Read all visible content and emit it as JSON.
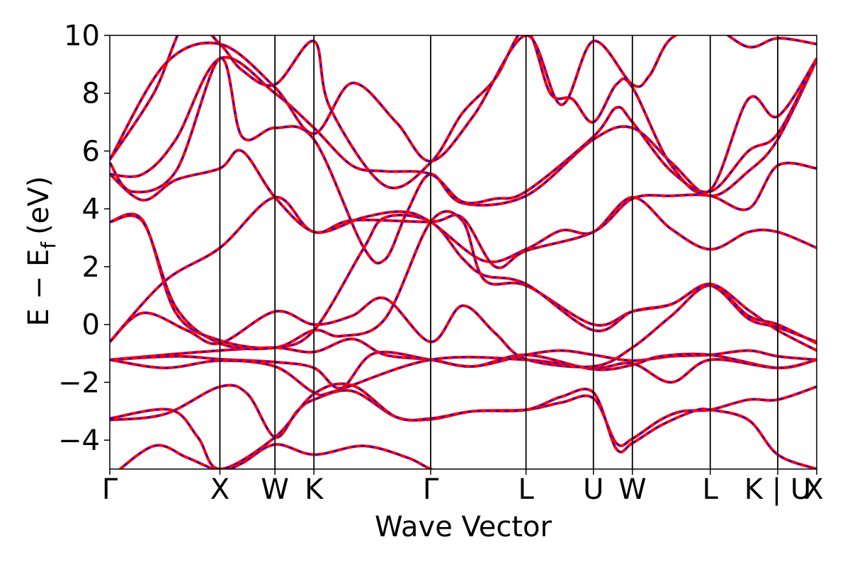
{
  "chart_data": {
    "type": "line",
    "xlabel": "Wave Vector",
    "ylabel": {
      "base": "E − E",
      "subscript": "f",
      "unit": "(eV)"
    },
    "ylim": [
      -5,
      10
    ],
    "yticks": [
      -4,
      -2,
      0,
      2,
      4,
      6,
      8,
      10
    ],
    "ytick_labels": [
      "−4",
      "−2",
      "0",
      "2",
      "4",
      "6",
      "8",
      "10"
    ],
    "grid": false,
    "k_path": [
      {
        "label": "Γ",
        "x": 0.0
      },
      {
        "label": "X",
        "x": 1.0
      },
      {
        "label": "W",
        "x": 1.5
      },
      {
        "label": "K",
        "x": 1.854
      },
      {
        "label": "Γ",
        "x": 2.914
      },
      {
        "label": "L",
        "x": 3.78
      },
      {
        "label": "U",
        "x": 4.392
      },
      {
        "label": "W",
        "x": 4.746
      },
      {
        "label": "L",
        "x": 5.453
      },
      {
        "label": "K | U",
        "x": 6.066
      },
      {
        "label": "X",
        "x": 6.42
      }
    ],
    "series_styles": [
      {
        "color": "#ff0000",
        "style": "solid"
      },
      {
        "color": "#0000ff",
        "style": "dashed"
      }
    ],
    "bands": [
      [
        [
          0,
          -5.3
        ],
        [
          0.4,
          -4.2
        ],
        [
          0.7,
          -4.6
        ],
        [
          1.0,
          -5.05
        ],
        [
          1.2,
          -4.8
        ],
        [
          1.5,
          -4.15
        ],
        [
          1.854,
          -4.5
        ],
        [
          2.3,
          -4.2
        ],
        [
          2.7,
          -4.6
        ],
        [
          2.914,
          -5.0
        ],
        [
          3.2,
          -5.4
        ]
      ],
      [
        [
          0,
          -3.3
        ],
        [
          0.5,
          -3.1
        ],
        [
          1.0,
          -2.15
        ],
        [
          1.25,
          -2.4
        ],
        [
          1.5,
          -3.9
        ],
        [
          1.7,
          -3.0
        ],
        [
          1.854,
          -2.6
        ],
        [
          2.2,
          -2.3
        ],
        [
          2.6,
          -3.2
        ],
        [
          2.914,
          -3.28
        ],
        [
          3.3,
          -3.0
        ],
        [
          3.78,
          -2.95
        ],
        [
          4.1,
          -2.7
        ],
        [
          4.392,
          -2.55
        ],
        [
          4.6,
          -4.1
        ],
        [
          4.746,
          -3.95
        ],
        [
          5.0,
          -3.3
        ],
        [
          5.2,
          -3.0
        ],
        [
          5.453,
          -2.95
        ],
        [
          5.8,
          -2.6
        ],
        [
          6.066,
          -2.6
        ],
        [
          6.42,
          -2.15
        ]
      ],
      [
        [
          0,
          -3.25
        ],
        [
          0.55,
          -2.95
        ],
        [
          0.8,
          -3.9
        ],
        [
          1.0,
          -5.0
        ],
        [
          1.5,
          -3.9
        ],
        [
          1.854,
          -2.4
        ],
        [
          2.2,
          -2.1
        ],
        [
          2.6,
          -3.2
        ],
        [
          2.914,
          -3.25
        ],
        [
          3.3,
          -3.0
        ],
        [
          3.78,
          -2.95
        ],
        [
          4.1,
          -2.5
        ],
        [
          4.392,
          -2.35
        ],
        [
          4.6,
          -4.3
        ],
        [
          4.746,
          -4.1
        ],
        [
          5.0,
          -3.5
        ],
        [
          5.3,
          -3.0
        ],
        [
          5.453,
          -2.95
        ],
        [
          5.8,
          -3.3
        ],
        [
          6.066,
          -4.5
        ],
        [
          6.42,
          -5.0
        ]
      ],
      [
        [
          0,
          -1.22
        ],
        [
          0.5,
          -1.05
        ],
        [
          1.0,
          -0.9
        ],
        [
          1.5,
          -0.8
        ],
        [
          1.854,
          -0.95
        ],
        [
          2.2,
          -0.5
        ],
        [
          2.5,
          -1.05
        ],
        [
          2.914,
          -1.22
        ],
        [
          3.3,
          -1.45
        ],
        [
          3.78,
          -1.05
        ],
        [
          4.1,
          -0.9
        ],
        [
          4.392,
          -1.05
        ],
        [
          4.746,
          -1.25
        ],
        [
          5.1,
          -1.1
        ],
        [
          5.453,
          -1.05
        ],
        [
          5.8,
          -0.9
        ],
        [
          6.066,
          -1.1
        ],
        [
          6.42,
          -1.22
        ]
      ],
      [
        [
          0,
          -1.22
        ],
        [
          0.6,
          -1.1
        ],
        [
          1.0,
          -1.2
        ],
        [
          1.5,
          -1.3
        ],
        [
          1.854,
          -1.5
        ],
        [
          2.1,
          -2.2
        ],
        [
          2.4,
          -1.0
        ],
        [
          2.914,
          -1.22
        ],
        [
          3.3,
          -1.45
        ],
        [
          3.78,
          -1.05
        ],
        [
          4.392,
          -1.55
        ],
        [
          4.746,
          -1.4
        ],
        [
          5.0,
          -1.1
        ],
        [
          5.453,
          -1.05
        ],
        [
          6.066,
          -1.5
        ],
        [
          6.42,
          -1.22
        ]
      ],
      [
        [
          0,
          -1.22
        ],
        [
          0.5,
          -1.5
        ],
        [
          1.0,
          -1.25
        ],
        [
          1.5,
          -1.45
        ],
        [
          1.854,
          -2.35
        ],
        [
          2.05,
          -2.3
        ],
        [
          2.914,
          -1.22
        ],
        [
          3.78,
          -1.22
        ],
        [
          4.392,
          -1.5
        ],
        [
          4.746,
          -1.35
        ],
        [
          5.1,
          -2.0
        ],
        [
          5.453,
          -1.22
        ],
        [
          6.066,
          -1.5
        ],
        [
          6.42,
          -1.22
        ]
      ],
      [
        [
          0,
          -0.6
        ],
        [
          0.3,
          0.4
        ],
        [
          0.7,
          -0.2
        ],
        [
          1.0,
          -0.65
        ],
        [
          1.5,
          0.45
        ],
        [
          1.854,
          0.0
        ],
        [
          2.2,
          0.3
        ],
        [
          2.5,
          0.9
        ],
        [
          2.914,
          -0.6
        ],
        [
          3.2,
          0.65
        ],
        [
          3.5,
          -0.3
        ],
        [
          3.78,
          -1.2
        ],
        [
          4.392,
          -1.45
        ],
        [
          4.746,
          -0.8
        ],
        [
          5.1,
          0.3
        ],
        [
          5.453,
          1.35
        ],
        [
          5.8,
          0.3
        ],
        [
          6.066,
          0.0
        ],
        [
          6.42,
          -0.65
        ]
      ],
      [
        [
          0,
          3.55
        ],
        [
          0.3,
          3.6
        ],
        [
          0.6,
          0.4
        ],
        [
          1.0,
          -0.55
        ],
        [
          1.5,
          -0.8
        ],
        [
          1.854,
          -0.2
        ],
        [
          2.1,
          -0.4
        ],
        [
          2.5,
          0.2
        ],
        [
          2.914,
          3.55
        ],
        [
          3.2,
          3.6
        ],
        [
          3.4,
          1.55
        ],
        [
          3.78,
          1.35
        ],
        [
          4.392,
          0.0
        ],
        [
          4.746,
          0.45
        ],
        [
          5.1,
          0.7
        ],
        [
          5.453,
          1.4
        ],
        [
          5.8,
          0.5
        ],
        [
          6.066,
          -0.2
        ],
        [
          6.42,
          -0.9
        ]
      ],
      [
        [
          0,
          3.55
        ],
        [
          0.3,
          3.55
        ],
        [
          0.6,
          0.6
        ],
        [
          1.0,
          -0.65
        ],
        [
          1.5,
          -0.8
        ],
        [
          1.854,
          -0.2
        ],
        [
          2.3,
          2.6
        ],
        [
          2.5,
          3.7
        ],
        [
          2.914,
          3.55
        ],
        [
          3.2,
          2.3
        ],
        [
          3.4,
          1.7
        ],
        [
          3.78,
          1.4
        ],
        [
          4.392,
          -0.2
        ],
        [
          4.746,
          0.45
        ],
        [
          5.1,
          0.7
        ],
        [
          5.453,
          1.35
        ],
        [
          5.8,
          0.2
        ],
        [
          6.066,
          -0.1
        ],
        [
          6.42,
          -0.6
        ]
      ],
      [
        [
          0,
          -0.6
        ],
        [
          0.5,
          1.5
        ],
        [
          1.0,
          2.65
        ],
        [
          1.5,
          4.4
        ],
        [
          1.854,
          3.2
        ],
        [
          2.3,
          3.7
        ],
        [
          2.65,
          3.9
        ],
        [
          2.914,
          3.55
        ],
        [
          3.4,
          2.2
        ],
        [
          3.78,
          2.6
        ],
        [
          4.1,
          3.25
        ],
        [
          4.392,
          3.2
        ],
        [
          4.746,
          4.4
        ],
        [
          5.1,
          3.3
        ],
        [
          5.453,
          2.6
        ],
        [
          5.8,
          3.2
        ],
        [
          6.066,
          3.2
        ],
        [
          6.42,
          2.65
        ]
      ],
      [
        [
          0,
          5.2
        ],
        [
          0.3,
          4.3
        ],
        [
          0.6,
          5.0
        ],
        [
          1.0,
          5.4
        ],
        [
          1.2,
          6.0
        ],
        [
          1.5,
          4.4
        ],
        [
          1.854,
          3.2
        ],
        [
          2.2,
          3.6
        ],
        [
          2.914,
          3.55
        ],
        [
          3.2,
          3.7
        ],
        [
          3.5,
          2.0
        ],
        [
          3.78,
          2.55
        ],
        [
          4.392,
          3.2
        ],
        [
          4.746,
          4.35
        ],
        [
          5.1,
          4.45
        ],
        [
          5.453,
          4.45
        ],
        [
          5.8,
          4.0
        ],
        [
          6.066,
          5.5
        ],
        [
          6.42,
          5.4
        ]
      ],
      [
        [
          0,
          5.6
        ],
        [
          0.2,
          4.6
        ],
        [
          0.6,
          5.3
        ],
        [
          1.0,
          9.2
        ],
        [
          1.2,
          6.5
        ],
        [
          1.5,
          6.8
        ],
        [
          1.854,
          6.4
        ],
        [
          2.3,
          2.7
        ],
        [
          2.5,
          2.25
        ],
        [
          2.7,
          3.9
        ],
        [
          2.914,
          5.2
        ],
        [
          3.2,
          4.2
        ],
        [
          3.78,
          4.45
        ],
        [
          4.392,
          6.4
        ],
        [
          4.746,
          6.8
        ],
        [
          5.1,
          5.6
        ],
        [
          5.453,
          4.45
        ],
        [
          5.8,
          5.3
        ],
        [
          6.066,
          6.4
        ],
        [
          6.42,
          9.15
        ]
      ],
      [
        [
          0,
          5.2
        ],
        [
          0.3,
          5.2
        ],
        [
          0.6,
          6.4
        ],
        [
          1.0,
          9.2
        ],
        [
          1.5,
          8.0
        ],
        [
          1.854,
          6.8
        ],
        [
          2.2,
          5.5
        ],
        [
          2.5,
          5.3
        ],
        [
          2.914,
          5.2
        ],
        [
          3.2,
          4.25
        ],
        [
          3.5,
          4.35
        ],
        [
          3.78,
          4.6
        ],
        [
          4.392,
          6.5
        ],
        [
          4.6,
          7.5
        ],
        [
          4.746,
          7.0
        ],
        [
          5.1,
          5.3
        ],
        [
          5.453,
          4.6
        ],
        [
          5.8,
          6.0
        ],
        [
          6.066,
          6.6
        ],
        [
          6.42,
          9.2
        ]
      ],
      [
        [
          0,
          5.7
        ],
        [
          0.4,
          8.0
        ],
        [
          0.7,
          10.5
        ],
        [
          1.0,
          9.7
        ],
        [
          1.2,
          8.8
        ],
        [
          1.5,
          8.3
        ],
        [
          1.854,
          9.8
        ],
        [
          2.0,
          7.5
        ],
        [
          2.5,
          4.8
        ],
        [
          2.914,
          5.6
        ],
        [
          3.2,
          7.3
        ],
        [
          3.5,
          8.5
        ],
        [
          3.78,
          10.2
        ],
        [
          4.0,
          8.0
        ],
        [
          4.2,
          7.8
        ],
        [
          4.392,
          7.0
        ],
        [
          4.6,
          8.3
        ],
        [
          4.746,
          8.2
        ],
        [
          5.1,
          5.5
        ],
        [
          5.453,
          4.65
        ],
        [
          5.8,
          7.8
        ],
        [
          6.066,
          7.2
        ],
        [
          6.42,
          9.2
        ]
      ],
      [
        [
          0,
          5.7
        ],
        [
          0.5,
          9.0
        ],
        [
          1.0,
          9.7
        ],
        [
          1.5,
          8.2
        ],
        [
          1.854,
          6.6
        ],
        [
          2.2,
          8.35
        ],
        [
          2.6,
          7.0
        ],
        [
          2.914,
          5.65
        ],
        [
          3.3,
          7.2
        ],
        [
          3.78,
          10.0
        ],
        [
          4.1,
          7.6
        ],
        [
          4.392,
          9.8
        ],
        [
          4.746,
          8.3
        ],
        [
          4.9,
          8.6
        ],
        [
          5.1,
          9.9
        ],
        [
          5.453,
          10.3
        ],
        [
          5.8,
          9.6
        ],
        [
          6.066,
          9.9
        ],
        [
          6.42,
          9.7
        ]
      ]
    ]
  }
}
